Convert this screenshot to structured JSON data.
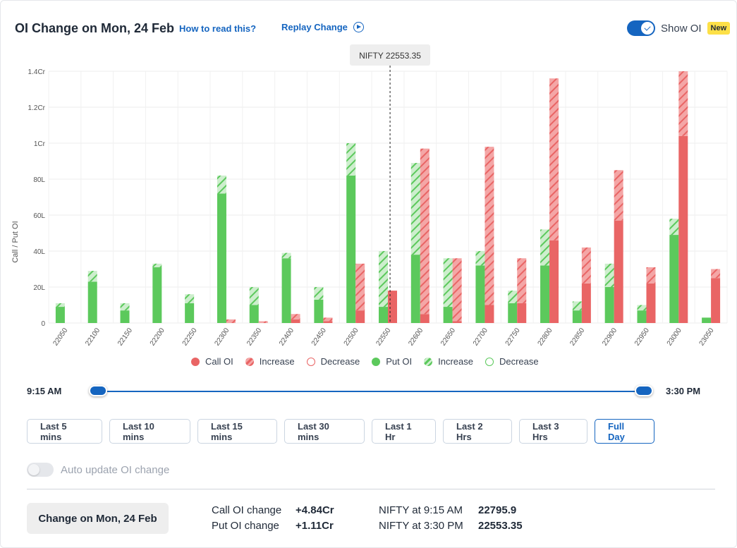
{
  "header": {
    "title": "OI Change on Mon, 24 Feb",
    "how_to_read": "How to read this?",
    "replay": "Replay Change",
    "show_oi_label": "Show OI",
    "new_badge": "New"
  },
  "colors": {
    "call": "#e96565",
    "call_light": "#f4a6a6",
    "put": "#5cc95c",
    "put_light": "#a9e4a9",
    "accent": "#1565c0"
  },
  "chart_data": {
    "type": "bar",
    "ylabel": "Call / Put OI",
    "y_ticks": [
      "0",
      "20L",
      "40L",
      "60L",
      "80L",
      "1Cr",
      "1.2Cr",
      "1.4Cr"
    ],
    "ylim": [
      0,
      140
    ],
    "y_unit": "lakh",
    "tooltip": "NIFTY 22553.35",
    "spot_marker": 22553.35,
    "strikes": [
      "22050",
      "22100",
      "22150",
      "22200",
      "22250",
      "22300",
      "22350",
      "22400",
      "22450",
      "22500",
      "22550",
      "22600",
      "22650",
      "22700",
      "22750",
      "22800",
      "22850",
      "22900",
      "22950",
      "23000",
      "23050"
    ],
    "put_oi": [
      9,
      23,
      7,
      31,
      11,
      72,
      10,
      36,
      13,
      82,
      9,
      38,
      9,
      32,
      11,
      32,
      7,
      20,
      7,
      49,
      3
    ],
    "put_change": [
      2,
      6,
      4,
      2,
      5,
      10,
      10,
      3,
      7,
      18,
      31,
      51,
      27,
      8,
      7,
      20,
      5,
      13,
      3,
      9,
      0
    ],
    "call_oi": [
      0,
      0,
      0,
      0,
      0,
      0,
      0,
      2,
      1,
      7,
      18,
      5,
      1,
      10,
      11,
      46,
      22,
      57,
      22,
      104,
      25
    ],
    "call_change": [
      0,
      0,
      0,
      0,
      0,
      2,
      1,
      3,
      2,
      26,
      0,
      92,
      35,
      88,
      25,
      90,
      20,
      28,
      9,
      36,
      5
    ],
    "legend": [
      "Call OI",
      "Increase",
      "Decrease",
      "Put OI",
      "Increase",
      "Decrease"
    ]
  },
  "slider": {
    "start": "9:15 AM",
    "end": "3:30 PM"
  },
  "ranges": [
    "Last 5 mins",
    "Last 10 mins",
    "Last 15 mins",
    "Last 30 mins",
    "Last 1 Hr",
    "Last 2 Hrs",
    "Last 3 Hrs",
    "Full Day"
  ],
  "active_range": "Full Day",
  "auto_update_label": "Auto update OI change",
  "footer": {
    "change_button": "Change on Mon, 24 Feb",
    "call_label": "Call OI change",
    "call_value": "+4.84Cr",
    "put_label": "Put OI change",
    "put_value": "+1.11Cr",
    "nifty_open_label": "NIFTY at 9:15 AM",
    "nifty_open_value": "22795.9",
    "nifty_close_label": "NIFTY at 3:30 PM",
    "nifty_close_value": "22553.35"
  }
}
